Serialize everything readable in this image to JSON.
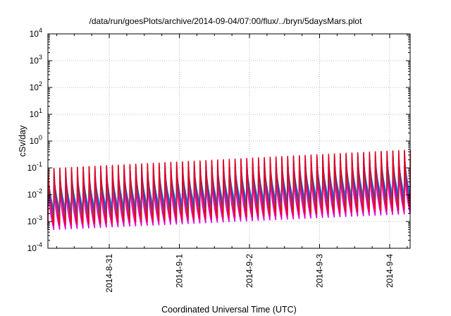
{
  "chart_data": {
    "type": "line",
    "title": "/data/run/goesPlots/archive/2014-09-04/07:00/flux/../bryn/5daysMars.plot",
    "xlabel": "Coordinated Universal Time (UTC)",
    "ylabel": "cSv/day",
    "yscale": "log",
    "ylim": [
      0.0001,
      10000
    ],
    "ytick_exponents": [
      -4,
      -3,
      -2,
      -1,
      0,
      1,
      2,
      3,
      4
    ],
    "ytick_base": "10",
    "xlim": [
      "2014-08-30T03:00",
      "2014-09-04T07:00"
    ],
    "xticks": [
      "2014-8-31",
      "2014-9-1",
      "2014-9-2",
      "2014-9-3",
      "2014-9-4"
    ],
    "xtick_dates": [
      "2014-08-31T00:00",
      "2014-09-01T00:00",
      "2014-09-02T00:00",
      "2014-09-03T00:00",
      "2014-09-04T00:00"
    ],
    "grid": true,
    "legend": "none",
    "waveform": {
      "period_hours": 2,
      "pattern": "sawtooth: sharp rise then decay over each period",
      "start_peak_log10": -1.15,
      "end_peak_log10": -0.45,
      "start_trough_log10": -2.2,
      "end_trough_log10": -1.6
    },
    "series": [
      {
        "color": "#e8001c",
        "peak_offset": 0.12,
        "trough_offset": -0.95
      },
      {
        "color": "#2050e8",
        "peak_offset": 0.08,
        "trough_offset": -0.55
      },
      {
        "color": "#00b0c8",
        "peak_offset": -0.1,
        "trough_offset": -0.35
      },
      {
        "color": "#20a060",
        "peak_offset": -0.3,
        "trough_offset": -0.7
      },
      {
        "color": "#e000e0",
        "peak_offset": -0.55,
        "trough_offset": -1.1
      }
    ]
  }
}
